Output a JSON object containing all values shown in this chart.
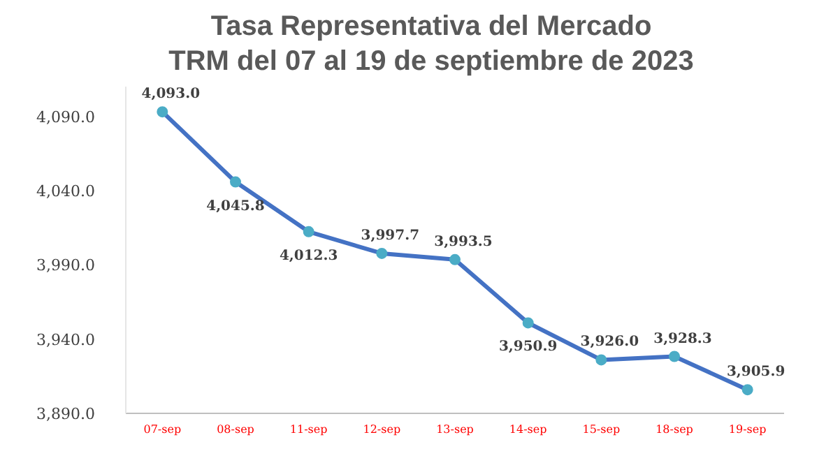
{
  "chart_data": {
    "type": "line",
    "title": "Tasa Representativa del Mercado\nTRM  del 07 al 19 de septiembre de 2023",
    "categories": [
      "07-sep",
      "08-sep",
      "11-sep",
      "12-sep",
      "13-sep",
      "14-sep",
      "15-sep",
      "18-sep",
      "19-sep"
    ],
    "series": [
      {
        "color": "#4472c4",
        "values": [
          4093.0,
          4045.8,
          4012.3,
          3997.7,
          3993.5,
          3950.9,
          3926.0,
          3928.3,
          3905.9
        ],
        "value_labels": [
          "4,093.0",
          "4,045.8",
          "4,012.3",
          "3,997.7",
          "3,993.5",
          "3,950.9",
          "3,926.0",
          "3,928.3",
          "3,905.9"
        ]
      }
    ],
    "ylim": [
      3890,
      4110
    ],
    "yticks": [
      {
        "value": 3890,
        "label": "3,890.0"
      },
      {
        "value": 3940,
        "label": "3,940.0"
      },
      {
        "value": 3990,
        "label": "3,990.0"
      },
      {
        "value": 4040,
        "label": "4,040.0"
      },
      {
        "value": 4090,
        "label": "4,090.0"
      }
    ],
    "marker": "circle",
    "grid": false
  }
}
